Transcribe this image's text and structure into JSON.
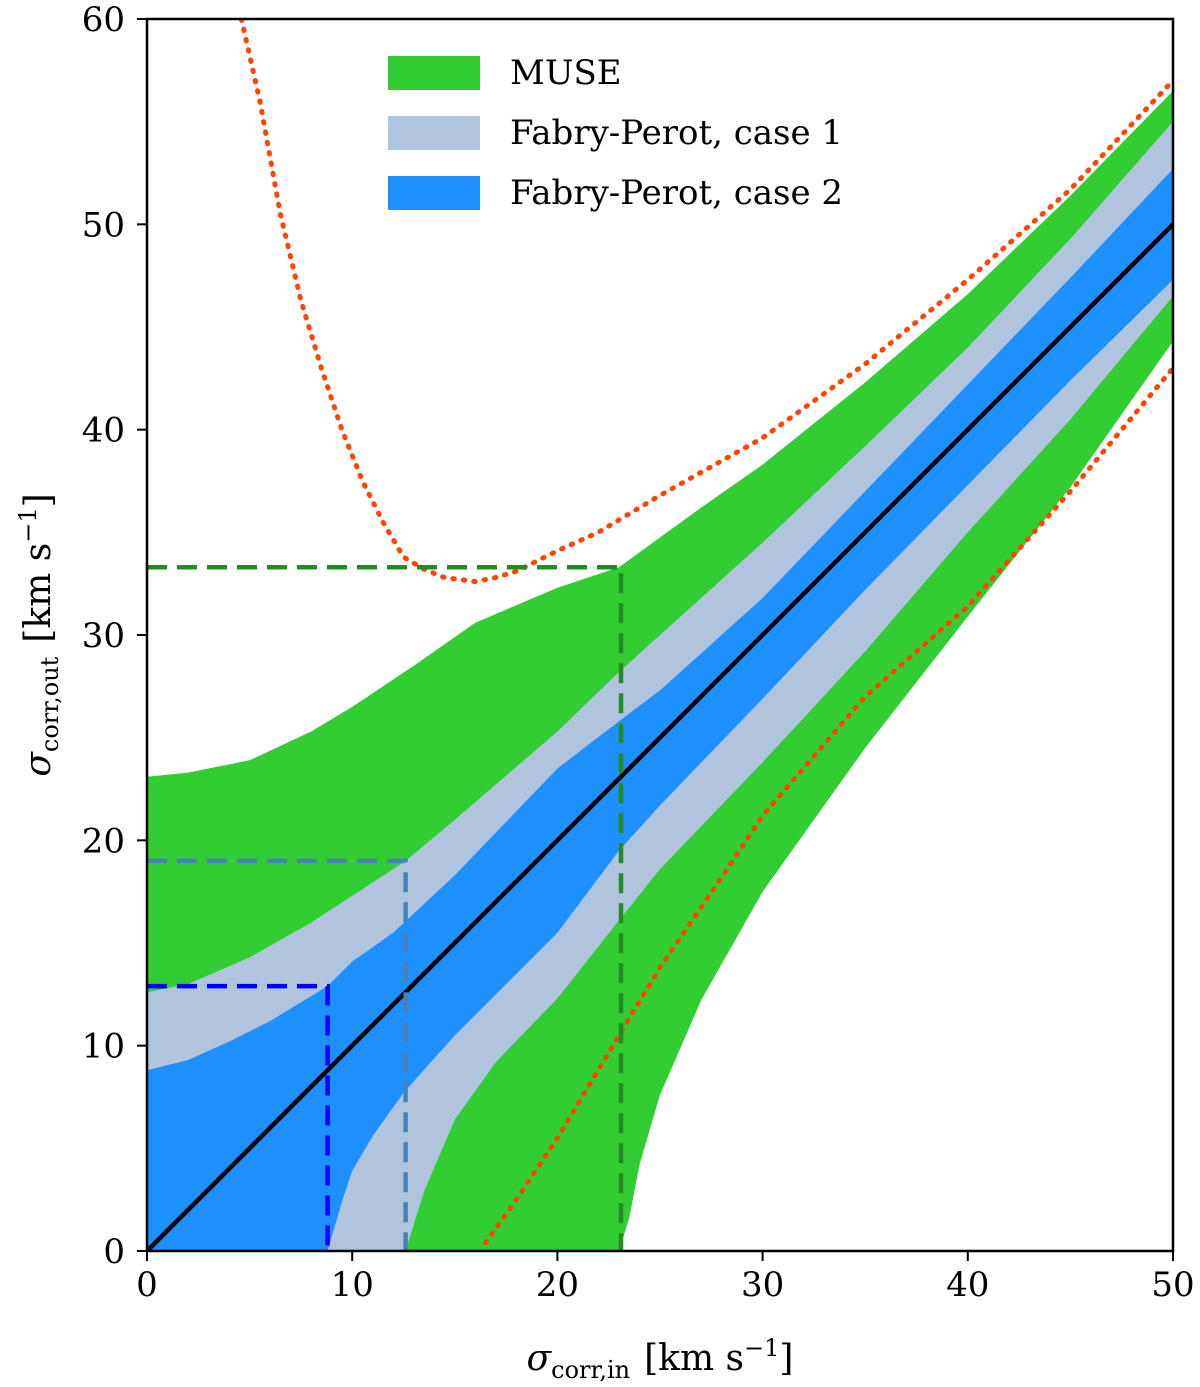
{
  "chart_data": {
    "type": "area",
    "title": "",
    "xlabel": {
      "symbol": "σ",
      "sub": "corr,in",
      "unit": "[km s",
      "exp": "−1",
      "close": "]"
    },
    "ylabel": {
      "symbol": "σ",
      "sub": "corr,out",
      "unit": "[km s",
      "exp": "−1",
      "close": "]"
    },
    "xlim": [
      0,
      50
    ],
    "ylim": [
      0,
      60
    ],
    "xticks": [
      0,
      10,
      20,
      30,
      40,
      50
    ],
    "yticks": [
      0,
      10,
      20,
      30,
      40,
      50,
      60
    ],
    "grid": false,
    "legend": {
      "placement": "top-center",
      "entries": [
        {
          "name": "MUSE",
          "color": "#32cd32"
        },
        {
          "name": "Fabry-Perot, case 1",
          "color": "#b0c4de"
        },
        {
          "name": "Fabry-Perot, case 2",
          "color": "#1e90ff"
        }
      ]
    },
    "bands": [
      {
        "name": "MUSE",
        "color": "#32cd32",
        "sigma": 23,
        "upper": [
          [
            0,
            23.1
          ],
          [
            2,
            23.3
          ],
          [
            5,
            23.9
          ],
          [
            8,
            25.3
          ],
          [
            10,
            26.5
          ],
          [
            13,
            28.5
          ],
          [
            16,
            30.6
          ],
          [
            20,
            32.3
          ],
          [
            23,
            33.3
          ],
          [
            27,
            36.2
          ],
          [
            30,
            38.3
          ],
          [
            35,
            42.3
          ],
          [
            40,
            46.6
          ],
          [
            45,
            51.4
          ],
          [
            50,
            56.5
          ]
        ],
        "lower": [
          [
            23,
            0
          ],
          [
            23.5,
            1.6
          ],
          [
            24,
            4.2
          ],
          [
            25,
            7.6
          ],
          [
            27,
            12.2
          ],
          [
            30,
            17.5
          ],
          [
            35,
            24.5
          ],
          [
            40,
            30.9
          ],
          [
            45,
            37.2
          ],
          [
            50,
            44.3
          ]
        ]
      },
      {
        "name": "Fabry-Perot, case 1",
        "color": "#b0c4de",
        "sigma": 12.6,
        "upper": [
          [
            0,
            12.6
          ],
          [
            2,
            13
          ],
          [
            5,
            14.3
          ],
          [
            8,
            16
          ],
          [
            10,
            17.3
          ],
          [
            12.6,
            19
          ],
          [
            15,
            21
          ],
          [
            20,
            25.3
          ],
          [
            23,
            28.2
          ],
          [
            25,
            30
          ],
          [
            30,
            34.5
          ],
          [
            35,
            39.2
          ],
          [
            40,
            44
          ],
          [
            45,
            49.3
          ],
          [
            50,
            55
          ]
        ],
        "lower": [
          [
            12.6,
            0
          ],
          [
            13.5,
            2.9
          ],
          [
            15,
            6.4
          ],
          [
            17,
            9.2
          ],
          [
            20,
            12.3
          ],
          [
            23,
            16.1
          ],
          [
            25,
            18.6
          ],
          [
            30,
            23.8
          ],
          [
            35,
            29.2
          ],
          [
            40,
            35
          ],
          [
            45,
            40.5
          ],
          [
            50,
            46.5
          ]
        ]
      },
      {
        "name": "Fabry-Perot, case 2",
        "color": "#1e90ff",
        "sigma": 8.8,
        "upper": [
          [
            0,
            8.8
          ],
          [
            2,
            9.3
          ],
          [
            4,
            10.2
          ],
          [
            6,
            11.2
          ],
          [
            8.8,
            12.9
          ],
          [
            10,
            14.1
          ],
          [
            12,
            15.5
          ],
          [
            15,
            18.3
          ],
          [
            20,
            23.5
          ],
          [
            23,
            25.8
          ],
          [
            25,
            27.3
          ],
          [
            30,
            31.8
          ],
          [
            35,
            37
          ],
          [
            40,
            42.2
          ],
          [
            45,
            47.4
          ],
          [
            50,
            52.7
          ]
        ],
        "lower": [
          [
            8.8,
            0
          ],
          [
            9.5,
            2.4
          ],
          [
            10,
            3.9
          ],
          [
            11,
            5.6
          ],
          [
            12.5,
            7.7
          ],
          [
            15,
            10.5
          ],
          [
            20,
            15.5
          ],
          [
            23,
            19.5
          ],
          [
            25,
            21.7
          ],
          [
            30,
            26.9
          ],
          [
            35,
            32.2
          ],
          [
            40,
            37.3
          ],
          [
            45,
            42.4
          ],
          [
            50,
            47.3
          ]
        ]
      }
    ],
    "series": [
      {
        "role": "identity",
        "color": "#000000",
        "style": "solid",
        "points": [
          [
            0,
            0
          ],
          [
            50,
            50
          ]
        ]
      },
      {
        "role": "upper-limit",
        "color": "#ff4500",
        "style": "dotted",
        "points": [
          [
            4.6,
            60
          ],
          [
            5.5,
            56
          ],
          [
            6.5,
            50.5
          ],
          [
            7.5,
            46.3
          ],
          [
            8.5,
            43
          ],
          [
            9.5,
            40
          ],
          [
            10.5,
            37.5
          ],
          [
            11.5,
            35.5
          ],
          [
            12.5,
            33.8
          ],
          [
            13.5,
            33.2
          ],
          [
            14.5,
            32.8
          ],
          [
            16,
            32.6
          ],
          [
            17,
            32.8
          ],
          [
            18,
            33.1
          ],
          [
            19,
            33.6
          ],
          [
            20,
            34.1
          ],
          [
            22,
            35
          ],
          [
            25,
            36.8
          ],
          [
            30,
            39.6
          ],
          [
            35,
            43.2
          ],
          [
            40,
            47.3
          ],
          [
            45,
            51.7
          ],
          [
            50,
            57
          ]
        ]
      },
      {
        "role": "lower-limit",
        "color": "#ff4500",
        "style": "dotted",
        "points": [
          [
            16.5,
            0.4
          ],
          [
            18,
            2.5
          ],
          [
            20,
            5.5
          ],
          [
            23,
            10.5
          ],
          [
            25,
            13.8
          ],
          [
            28,
            18.2
          ],
          [
            30,
            21.2
          ],
          [
            35,
            27
          ],
          [
            40,
            31.4
          ],
          [
            45,
            37
          ],
          [
            50,
            43
          ]
        ]
      }
    ],
    "threshold_lines": [
      {
        "color": "#228b22",
        "x": 23.1,
        "y": 33.3
      },
      {
        "color": "#4682b4",
        "x": 12.6,
        "y": 19
      },
      {
        "color": "#0000ff",
        "x": 8.8,
        "y": 12.9
      }
    ]
  }
}
